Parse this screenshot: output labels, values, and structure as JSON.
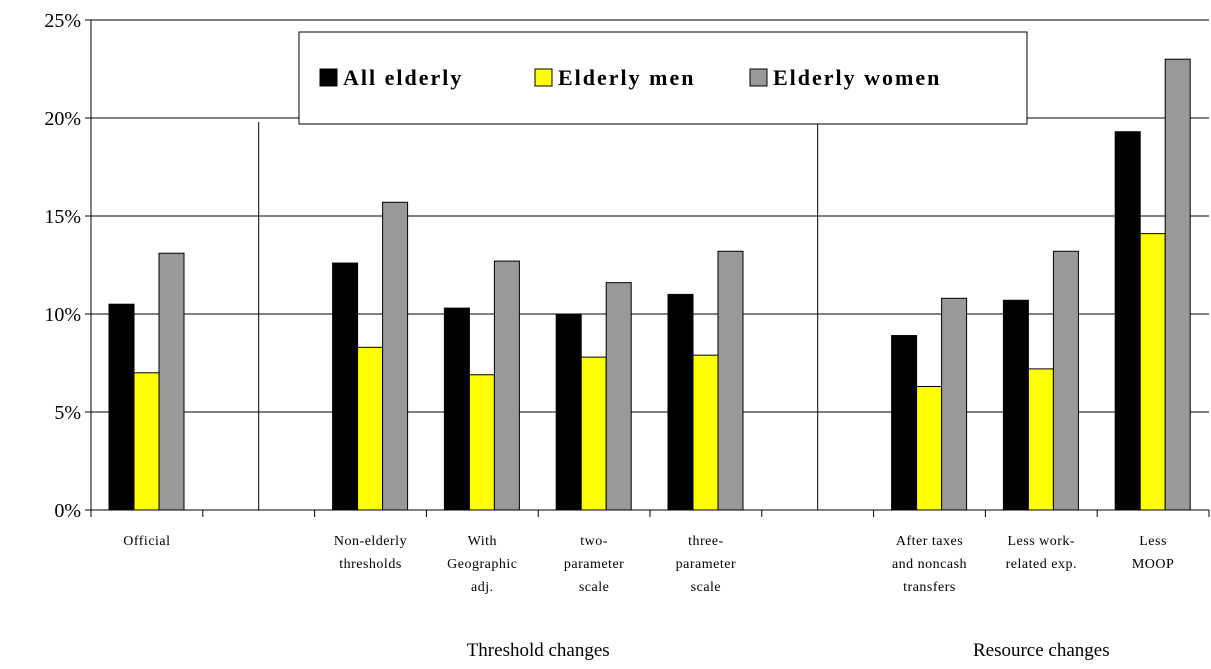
{
  "chart_data": {
    "type": "bar",
    "categories": [
      [
        "Official"
      ],
      [],
      [
        "Non-elderly",
        "thresholds"
      ],
      [
        "With",
        "Geographic",
        "adj."
      ],
      [
        "two-",
        "parameter",
        "scale"
      ],
      [
        "three-",
        "parameter",
        "scale"
      ],
      [],
      [
        "After taxes",
        "and noncash",
        "transfers"
      ],
      [
        "Less work-",
        "related exp."
      ],
      [
        "Less",
        "MOOP"
      ]
    ],
    "series": [
      {
        "name": "All elderly",
        "color": "#000000",
        "values": [
          10.5,
          null,
          12.6,
          10.3,
          10.0,
          11.0,
          null,
          8.9,
          10.7,
          19.3
        ]
      },
      {
        "name": "Elderly men",
        "color": "#ffff00",
        "values": [
          7.0,
          null,
          8.3,
          6.9,
          7.8,
          7.9,
          null,
          6.3,
          7.2,
          14.1
        ]
      },
      {
        "name": "Elderly women",
        "color": "#999999",
        "values": [
          13.1,
          null,
          15.7,
          12.7,
          11.6,
          13.2,
          null,
          10.8,
          13.2,
          23.0
        ]
      }
    ],
    "yticks": [
      "0%",
      "5%",
      "10%",
      "15%",
      "20%",
      "25%"
    ],
    "ylim": [
      0,
      25
    ],
    "groups": [
      {
        "label": "Threshold changes",
        "from": 2,
        "to": 5
      },
      {
        "label": "Resource changes",
        "from": 7,
        "to": 9
      }
    ],
    "grid": true,
    "legend_position": "top-center"
  }
}
